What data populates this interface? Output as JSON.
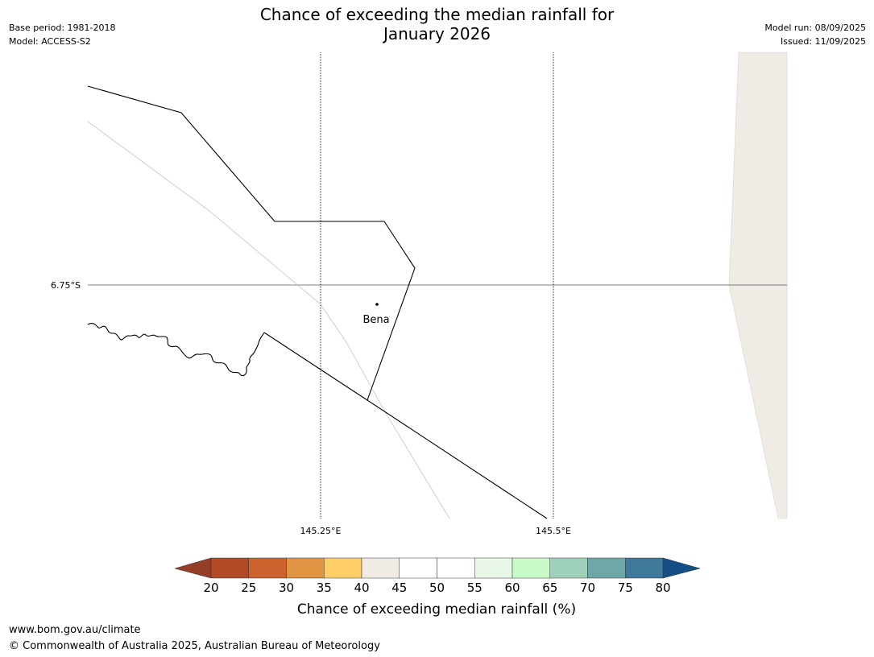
{
  "title_line1": "Chance of exceeding the median rainfall for",
  "title_line2": "January 2026",
  "base_period": "Base period: 1981-2018",
  "model": "Model: ACCESS-S2",
  "model_run": "Model run: 08/09/2025",
  "issued": "Issued: 11/09/2025",
  "map": {
    "lat_label": "6.75°S",
    "lon_labels": [
      "145.25°E",
      "145.5°E"
    ],
    "place": "Bena",
    "land_color": "#f1ebe6"
  },
  "legend": {
    "title": "Chance of exceeding median rainfall (%)",
    "ticks": [
      "20",
      "25",
      "30",
      "35",
      "40",
      "45",
      "50",
      "55",
      "60",
      "65",
      "70",
      "75",
      "80"
    ],
    "low_color": "#963d28",
    "high_color": "#154e87",
    "colors": [
      "#b04a27",
      "#cc632f",
      "#e19444",
      "#fdcd68",
      "#f1ebe6",
      "#ffffff",
      "#ffffff",
      "#e9f7e9",
      "#c8fac8",
      "#9fd1ba",
      "#6da7a6",
      "#3f7a9c"
    ]
  },
  "footer": {
    "url": "www.bom.gov.au/climate",
    "copyright": "© Commonwealth of Australia 2025, Australian Bureau of Meteorology"
  }
}
